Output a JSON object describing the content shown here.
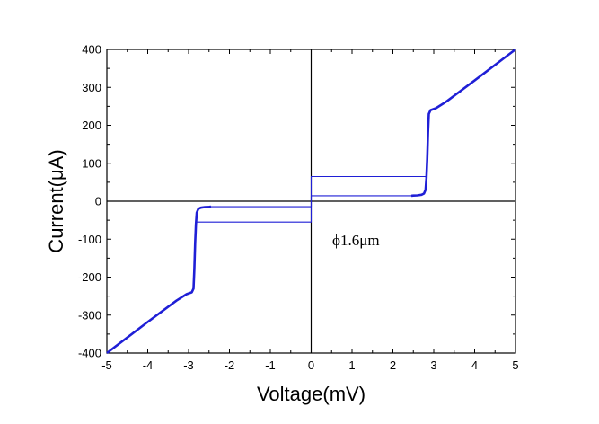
{
  "chart_data": {
    "type": "line",
    "title": "",
    "xlabel": "Voltage(mV)",
    "ylabel": "Current(μA)",
    "xlim": [
      -5,
      5
    ],
    "ylim": [
      -400,
      400
    ],
    "x_ticks": [
      -5,
      -4,
      -3,
      -2,
      -1,
      0,
      1,
      2,
      3,
      4,
      5
    ],
    "y_ticks": [
      -400,
      -300,
      -200,
      -100,
      0,
      100,
      200,
      300,
      400
    ],
    "grid": false,
    "zero_lines": true,
    "annotation": "ϕ1.6μm",
    "line_color": "#1f1fd6",
    "series": [
      {
        "x": [
          -5.0,
          -4.0,
          -3.3,
          -3.05,
          -2.92,
          -2.88,
          -2.86,
          -2.84,
          -2.82,
          -2.8,
          -2.76,
          -2.7,
          -2.6,
          -2.5,
          -2.45
        ],
        "y": [
          -400,
          -318,
          -262,
          -245,
          -240,
          -230,
          -180,
          -110,
          -60,
          -30,
          -20,
          -17,
          -15.5,
          -15,
          -14.5
        ]
      },
      {
        "x": [
          -2.8,
          0.0,
          0.0,
          0.0,
          2.8
        ],
        "y": [
          -55,
          -55,
          0,
          65,
          65
        ]
      },
      {
        "x": [
          -2.45,
          0.0,
          0.0,
          0.0,
          2.45
        ],
        "y": [
          -14.5,
          -14.5,
          0,
          14.5,
          14.5
        ]
      },
      {
        "x": [
          2.45,
          2.5,
          2.6,
          2.7,
          2.76,
          2.8,
          2.82,
          2.84,
          2.86,
          2.88,
          2.92,
          3.05,
          3.3,
          4.0,
          5.0
        ],
        "y": [
          14.5,
          15,
          15.5,
          17,
          20,
          30,
          60,
          110,
          180,
          230,
          240,
          245,
          262,
          318,
          400
        ]
      }
    ]
  }
}
